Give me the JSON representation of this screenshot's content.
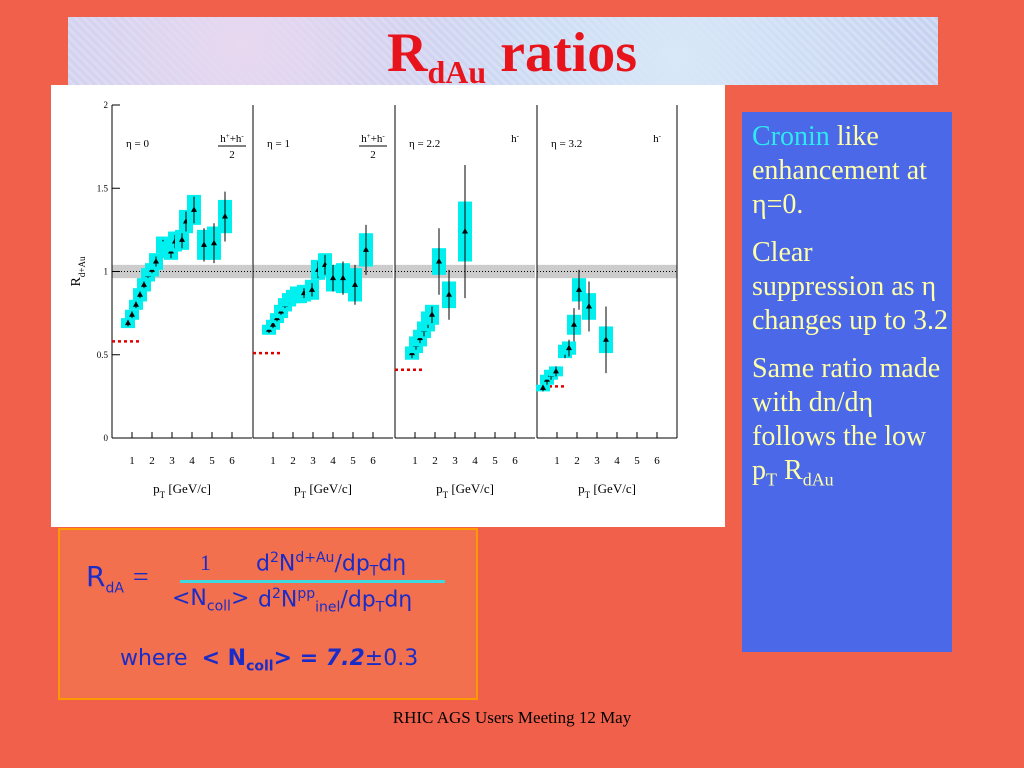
{
  "title": {
    "main": "R",
    "sub": "dAu",
    "rest": " ratios"
  },
  "chart_data": [
    {
      "type": "scatter",
      "label": "η = 0",
      "species": {
        "num": [
          "h",
          "+",
          "+h",
          "-"
        ],
        "den": "2"
      },
      "ylabel": {
        "main": "R",
        "sub": "d+Au"
      },
      "xlabel": {
        "main": "p",
        "sub": "T",
        "rest": " [GeV/c]"
      },
      "x": [
        0.8,
        1.0,
        1.2,
        1.4,
        1.6,
        1.8,
        2.0,
        2.2,
        2.55,
        2.75,
        2.95,
        3.15,
        3.5,
        3.7,
        4.1,
        4.6,
        5.1,
        5.65
      ],
      "values": [
        0.69,
        0.74,
        0.8,
        0.86,
        0.92,
        0.98,
        1.01,
        1.06,
        1.16,
        1.13,
        1.12,
        1.18,
        1.19,
        1.3,
        1.37,
        1.16,
        1.17,
        1.33
      ],
      "errors": [
        0.02,
        0.02,
        0.02,
        0.02,
        0.02,
        0.02,
        0.02,
        0.03,
        0.03,
        0.03,
        0.04,
        0.04,
        0.05,
        0.06,
        0.08,
        0.1,
        0.12,
        0.15
      ],
      "sys": [
        0.03,
        0.03,
        0.03,
        0.04,
        0.04,
        0.04,
        0.04,
        0.05,
        0.05,
        0.05,
        0.05,
        0.06,
        0.06,
        0.07,
        0.09,
        0.09,
        0.1,
        0.1
      ],
      "color": "#00f0f0",
      "reference_level": 0.58,
      "band": [
        0.96,
        1.04
      ],
      "ref_line": 1,
      "xlim": [
        0,
        7
      ],
      "xticks": [
        1,
        2,
        3,
        4,
        5,
        6
      ],
      "ylim": [
        0,
        2
      ],
      "yticks": [
        0,
        0.5,
        1,
        1.5,
        2
      ]
    },
    {
      "type": "scatter",
      "label": "η = 1",
      "species": {
        "num": [
          "h",
          "+",
          "+h",
          "-"
        ],
        "den": "2"
      },
      "xlabel": {
        "main": "p",
        "sub": "T",
        "rest": " [GeV/c]"
      },
      "x": [
        0.8,
        1.0,
        1.2,
        1.4,
        1.6,
        1.8,
        2.0,
        2.2,
        2.35,
        2.55,
        2.95,
        3.25,
        3.6,
        4.0,
        4.5,
        5.1,
        5.65
      ],
      "values": [
        0.65,
        0.68,
        0.72,
        0.76,
        0.8,
        0.83,
        0.85,
        0.86,
        0.86,
        0.87,
        0.89,
        1.01,
        1.04,
        0.96,
        0.96,
        0.92,
        1.13
      ],
      "errors": [
        0.02,
        0.02,
        0.02,
        0.02,
        0.02,
        0.02,
        0.02,
        0.03,
        0.03,
        0.03,
        0.04,
        0.05,
        0.06,
        0.08,
        0.1,
        0.12,
        0.15
      ],
      "sys": [
        0.03,
        0.03,
        0.03,
        0.04,
        0.04,
        0.04,
        0.04,
        0.05,
        0.05,
        0.05,
        0.06,
        0.06,
        0.07,
        0.08,
        0.09,
        0.1,
        0.1
      ],
      "color": "#00f0f0",
      "reference_level": 0.51,
      "band": [
        0.96,
        1.04
      ],
      "ref_line": 1,
      "xlim": [
        0,
        7
      ],
      "xticks": [
        1,
        2,
        3,
        4,
        5,
        6
      ],
      "ylim": [
        0,
        2
      ]
    },
    {
      "type": "scatter",
      "label": "η = 2.2",
      "species": {
        "num": [
          "h",
          "-"
        ]
      },
      "xlabel": {
        "main": "p",
        "sub": "T",
        "rest": " [GeV/c]"
      },
      "x": [
        0.85,
        1.05,
        1.25,
        1.45,
        1.65,
        1.85,
        2.2,
        2.7,
        3.5
      ],
      "values": [
        0.51,
        0.56,
        0.6,
        0.65,
        0.7,
        0.74,
        1.06,
        0.86,
        1.24
      ],
      "errors": [
        0.03,
        0.03,
        0.03,
        0.04,
        0.04,
        0.05,
        0.2,
        0.15,
        0.4
      ],
      "sys": [
        0.04,
        0.05,
        0.05,
        0.05,
        0.06,
        0.06,
        0.08,
        0.08,
        0.18
      ],
      "color": "#00f0f0",
      "reference_level": 0.41,
      "band": [
        0.96,
        1.04
      ],
      "ref_line": 1,
      "xlim": [
        0,
        7
      ],
      "xticks": [
        1,
        2,
        3,
        4,
        5,
        6
      ],
      "ylim": [
        0,
        2
      ]
    },
    {
      "type": "scatter",
      "label": "η = 3.2",
      "species": {
        "num": [
          "h",
          "-"
        ]
      },
      "xlabel": {
        "main": "p",
        "sub": "T",
        "rest": " [GeV/c]"
      },
      "x": [
        0.3,
        0.5,
        0.7,
        0.95,
        1.4,
        1.6,
        1.85,
        2.1,
        2.6,
        3.45
      ],
      "values": [
        0.3,
        0.35,
        0.38,
        0.4,
        0.52,
        0.54,
        0.68,
        0.89,
        0.79,
        0.59
      ],
      "errors": [
        0.02,
        0.03,
        0.03,
        0.03,
        0.04,
        0.05,
        0.1,
        0.12,
        0.15,
        0.2
      ],
      "sys": [
        0.02,
        0.03,
        0.03,
        0.03,
        0.04,
        0.04,
        0.06,
        0.07,
        0.08,
        0.08
      ],
      "color": "#00f0f0",
      "reference_level": 0.31,
      "band": [
        0.96,
        1.04
      ],
      "ref_line": 1,
      "xlim": [
        0,
        7
      ],
      "xticks": [
        1,
        2,
        3,
        4,
        5,
        6
      ],
      "ylim": [
        0,
        2
      ]
    }
  ],
  "formula": {
    "lhs": "R",
    "lhs_sub": "dA",
    "equals": "=",
    "one": "1",
    "num": [
      "d",
      "2",
      "N",
      "d+Au",
      "/dp",
      "T",
      "dη"
    ],
    "den_left": [
      "<N",
      "coll",
      ">"
    ],
    "den": [
      "d",
      "2",
      "N",
      "pp",
      "inel",
      "/dp",
      "T",
      "dη"
    ],
    "where": "where",
    "ncoll": [
      "< N",
      "coll",
      "> = "
    ],
    "ncoll_value": "7.2",
    "ncoll_error": "±0.3"
  },
  "notes": {
    "p1": [
      "Cronin",
      " like enhancement at η=0."
    ],
    "p2": "Clear suppression as η changes up to 3.2",
    "p3": [
      "Same ratio made with dn/dη follows the low p",
      "T",
      " R",
      "dAu"
    ]
  },
  "footer": "RHIC AGS Users Meeting 12 May"
}
